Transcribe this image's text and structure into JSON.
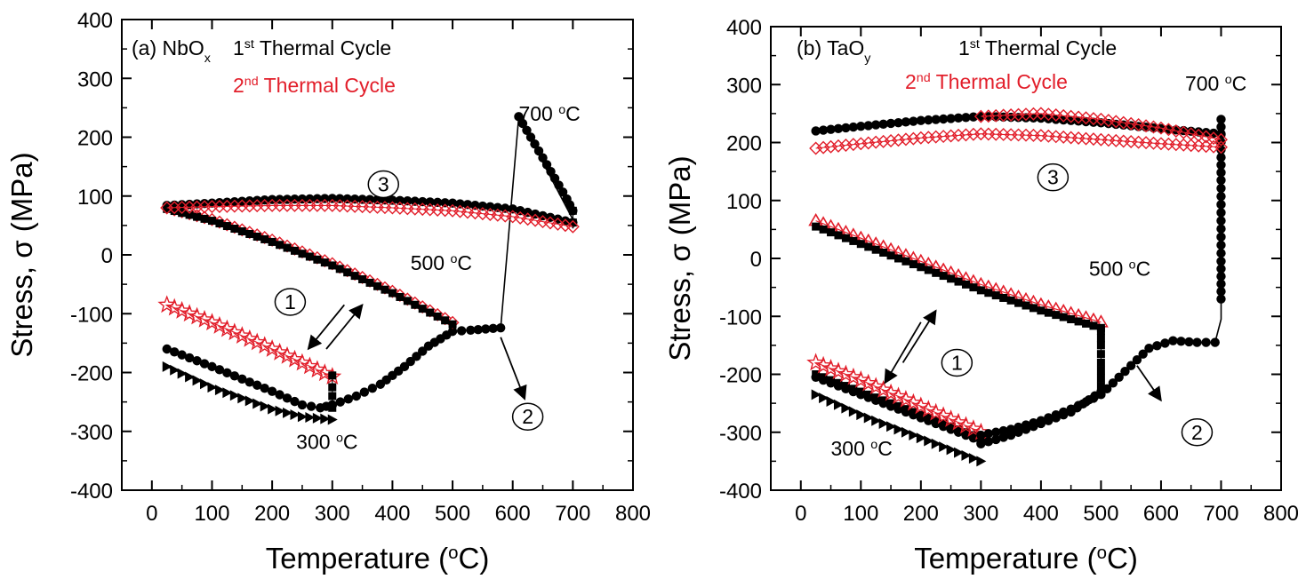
{
  "chart_data": [
    {
      "type": "scatter",
      "panel_label": "(a)",
      "material": "NbO",
      "material_sub": "x",
      "cycle_labels": [
        {
          "n": "1",
          "sup": "st",
          "text": "Thermal Cycle",
          "color": "#000000"
        },
        {
          "n": "2",
          "sup": "nd",
          "text": "Thermal Cycle",
          "color": "#e21e2a"
        }
      ],
      "xlabel": "Temperature (",
      "xlabel_sup": "o",
      "xlabel_tail": "C)",
      "ylabel": "Stress, σ (MPa)",
      "xlim": [
        -50,
        800
      ],
      "ylim": [
        -400,
        400
      ],
      "xticks": [
        0,
        100,
        200,
        300,
        400,
        500,
        600,
        700,
        800
      ],
      "yticks": [
        -400,
        -300,
        -200,
        -100,
        0,
        100,
        200,
        300,
        400
      ],
      "temp_labels": [
        {
          "text": "700 ",
          "sup": "o",
          "tail": "C",
          "x": 610,
          "y": 228
        },
        {
          "text": "500 ",
          "sup": "o",
          "tail": "C",
          "x": 430,
          "y": -26
        },
        {
          "text": "300 ",
          "sup": "o",
          "tail": "C",
          "x": 240,
          "y": -330
        }
      ],
      "circled": [
        {
          "label": "1",
          "x": 230,
          "y": -80
        },
        {
          "label": "2",
          "x": 625,
          "y": -275
        },
        {
          "label": "3",
          "x": 385,
          "y": 120
        }
      ],
      "arrows": [
        {
          "x1": 320,
          "y1": -85,
          "x2": 260,
          "y2": -160
        },
        {
          "x1": 290,
          "y1": -160,
          "x2": 350,
          "y2": -85
        },
        {
          "x1": 580,
          "y1": -140,
          "x2": 620,
          "y2": -245
        }
      ],
      "series": [
        {
          "style": "black-circle",
          "x": [
            25,
            100,
            200,
            250,
            280,
            300
          ],
          "y": [
            -160,
            -190,
            -232,
            -255,
            -260,
            -255
          ]
        },
        {
          "style": "black-triangle-right",
          "x": [
            25,
            100,
            200,
            250,
            300
          ],
          "y": [
            -190,
            -225,
            -262,
            -275,
            -280
          ]
        },
        {
          "style": "red-star",
          "x": [
            25,
            100,
            200,
            300
          ],
          "y": [
            -85,
            -115,
            -160,
            -207
          ]
        },
        {
          "style": "black-square",
          "x": [
            300,
            300,
            300,
            300
          ],
          "y": [
            -260,
            -240,
            -225,
            -205
          ]
        },
        {
          "style": "black-circle",
          "x": [
            300,
            340,
            380,
            420,
            460,
            500,
            530,
            580
          ],
          "y": [
            -255,
            -240,
            -220,
            -190,
            -155,
            -130,
            -128,
            -124
          ]
        },
        {
          "style": "red-diamond",
          "x": [
            25,
            100,
            200,
            300,
            400,
            500
          ],
          "y": [
            80,
            60,
            25,
            -15,
            -62,
            -115
          ]
        },
        {
          "style": "black-square",
          "x": [
            25,
            100,
            200,
            300,
            400,
            500
          ],
          "y": [
            78,
            58,
            22,
            -18,
            -65,
            -118
          ]
        },
        {
          "style": "black-line",
          "x": [
            580,
            610,
            700,
            700
          ],
          "y": [
            -124,
            235,
            60,
            45
          ]
        },
        {
          "style": "black-circle",
          "x": [
            610,
            630,
            650,
            670,
            690,
            700
          ],
          "y": [
            235,
            200,
            165,
            130,
            95,
            75
          ]
        },
        {
          "style": "black-square",
          "x": [
            700,
            700
          ],
          "y": [
            75,
            55
          ]
        },
        {
          "style": "black-circle",
          "x": [
            25,
            100,
            200,
            300,
            400,
            500,
            600,
            700
          ],
          "y": [
            84,
            88,
            94,
            96,
            93,
            88,
            78,
            55
          ]
        },
        {
          "style": "red-diamond",
          "x": [
            25,
            100,
            200,
            300,
            400,
            500,
            600,
            700
          ],
          "y": [
            80,
            82,
            84,
            84,
            80,
            75,
            65,
            48
          ]
        }
      ]
    },
    {
      "type": "scatter",
      "panel_label": "(b)",
      "material": "TaO",
      "material_sub": "y",
      "cycle_labels": [
        {
          "n": "1",
          "sup": "st",
          "text": "Thermal Cycle",
          "color": "#000000"
        },
        {
          "n": "2",
          "sup": "nd",
          "text": "Thermal Cycle",
          "color": "#e21e2a"
        }
      ],
      "xlabel": "Temperature (",
      "xlabel_sup": "o",
      "xlabel_tail": "C)",
      "ylabel": "Stress, σ (MPa)",
      "xlim": [
        -50,
        800
      ],
      "ylim": [
        -400,
        400
      ],
      "xticks": [
        0,
        100,
        200,
        300,
        400,
        500,
        600,
        700,
        800
      ],
      "yticks": [
        -400,
        -300,
        -200,
        -100,
        0,
        100,
        200,
        300,
        400
      ],
      "temp_labels": [
        {
          "text": "700 ",
          "sup": "o",
          "tail": "C",
          "x": 640,
          "y": 290
        },
        {
          "text": "500 ",
          "sup": "o",
          "tail": "C",
          "x": 480,
          "y": -30
        },
        {
          "text": "300 ",
          "sup": "o",
          "tail": "C",
          "x": 50,
          "y": -340
        }
      ],
      "circled": [
        {
          "label": "1",
          "x": 260,
          "y": -180
        },
        {
          "label": "2",
          "x": 660,
          "y": -300
        },
        {
          "label": "3",
          "x": 420,
          "y": 140
        }
      ],
      "arrows": [
        {
          "x1": 200,
          "y1": -110,
          "x2": 140,
          "y2": -215
        },
        {
          "x1": 170,
          "y1": -180,
          "x2": 225,
          "y2": -90
        },
        {
          "x1": 560,
          "y1": -185,
          "x2": 600,
          "y2": -245
        }
      ],
      "series": [
        {
          "style": "black-circle",
          "x": [
            25,
            100,
            200,
            300
          ],
          "y": [
            -205,
            -235,
            -275,
            -315
          ]
        },
        {
          "style": "black-triangle-right",
          "x": [
            25,
            100,
            200,
            300
          ],
          "y": [
            -235,
            -270,
            -310,
            -350
          ]
        },
        {
          "style": "black-square",
          "x": [
            25,
            100,
            200,
            300
          ],
          "y": [
            -200,
            -230,
            -270,
            -310
          ]
        },
        {
          "style": "red-star",
          "x": [
            25,
            100,
            200,
            300
          ],
          "y": [
            -180,
            -210,
            -255,
            -300
          ]
        },
        {
          "style": "black-circle",
          "x": [
            300,
            350,
            400,
            450,
            500,
            540,
            580,
            620,
            660,
            690
          ],
          "y": [
            -305,
            -295,
            -280,
            -260,
            -235,
            -195,
            -155,
            -142,
            -145,
            -145
          ]
        },
        {
          "style": "black-circle",
          "x": [
            300,
            350,
            400,
            450,
            500
          ],
          "y": [
            -320,
            -305,
            -285,
            -265,
            -230
          ]
        },
        {
          "style": "red-triangle",
          "x": [
            25,
            100,
            200,
            300,
            400,
            500
          ],
          "y": [
            65,
            35,
            -5,
            -45,
            -80,
            -110
          ]
        },
        {
          "style": "black-square",
          "x": [
            25,
            100,
            200,
            300,
            400,
            500
          ],
          "y": [
            55,
            25,
            -15,
            -55,
            -90,
            -120
          ]
        },
        {
          "style": "black-square",
          "x": [
            500,
            500,
            500,
            500
          ],
          "y": [
            -220,
            -180,
            -150,
            -125
          ]
        },
        {
          "style": "black-line",
          "x": [
            690,
            700,
            700
          ],
          "y": [
            -145,
            -105,
            245
          ]
        },
        {
          "style": "black-circle",
          "x": [
            700,
            700,
            700,
            700
          ],
          "y": [
            -70,
            -5,
            135,
            240
          ]
        },
        {
          "style": "black-circle",
          "x": [
            25,
            100,
            200,
            300,
            400,
            500,
            600,
            700
          ],
          "y": [
            220,
            228,
            238,
            245,
            242,
            234,
            224,
            215
          ]
        },
        {
          "style": "red-diamond",
          "x": [
            25,
            100,
            200,
            300,
            400,
            500,
            600,
            700
          ],
          "y": [
            190,
            198,
            208,
            215,
            212,
            205,
            198,
            192
          ]
        },
        {
          "style": "red-diamond",
          "x": [
            300,
            400,
            500,
            600,
            700
          ],
          "y": [
            245,
            250,
            240,
            225,
            205
          ]
        }
      ]
    }
  ]
}
